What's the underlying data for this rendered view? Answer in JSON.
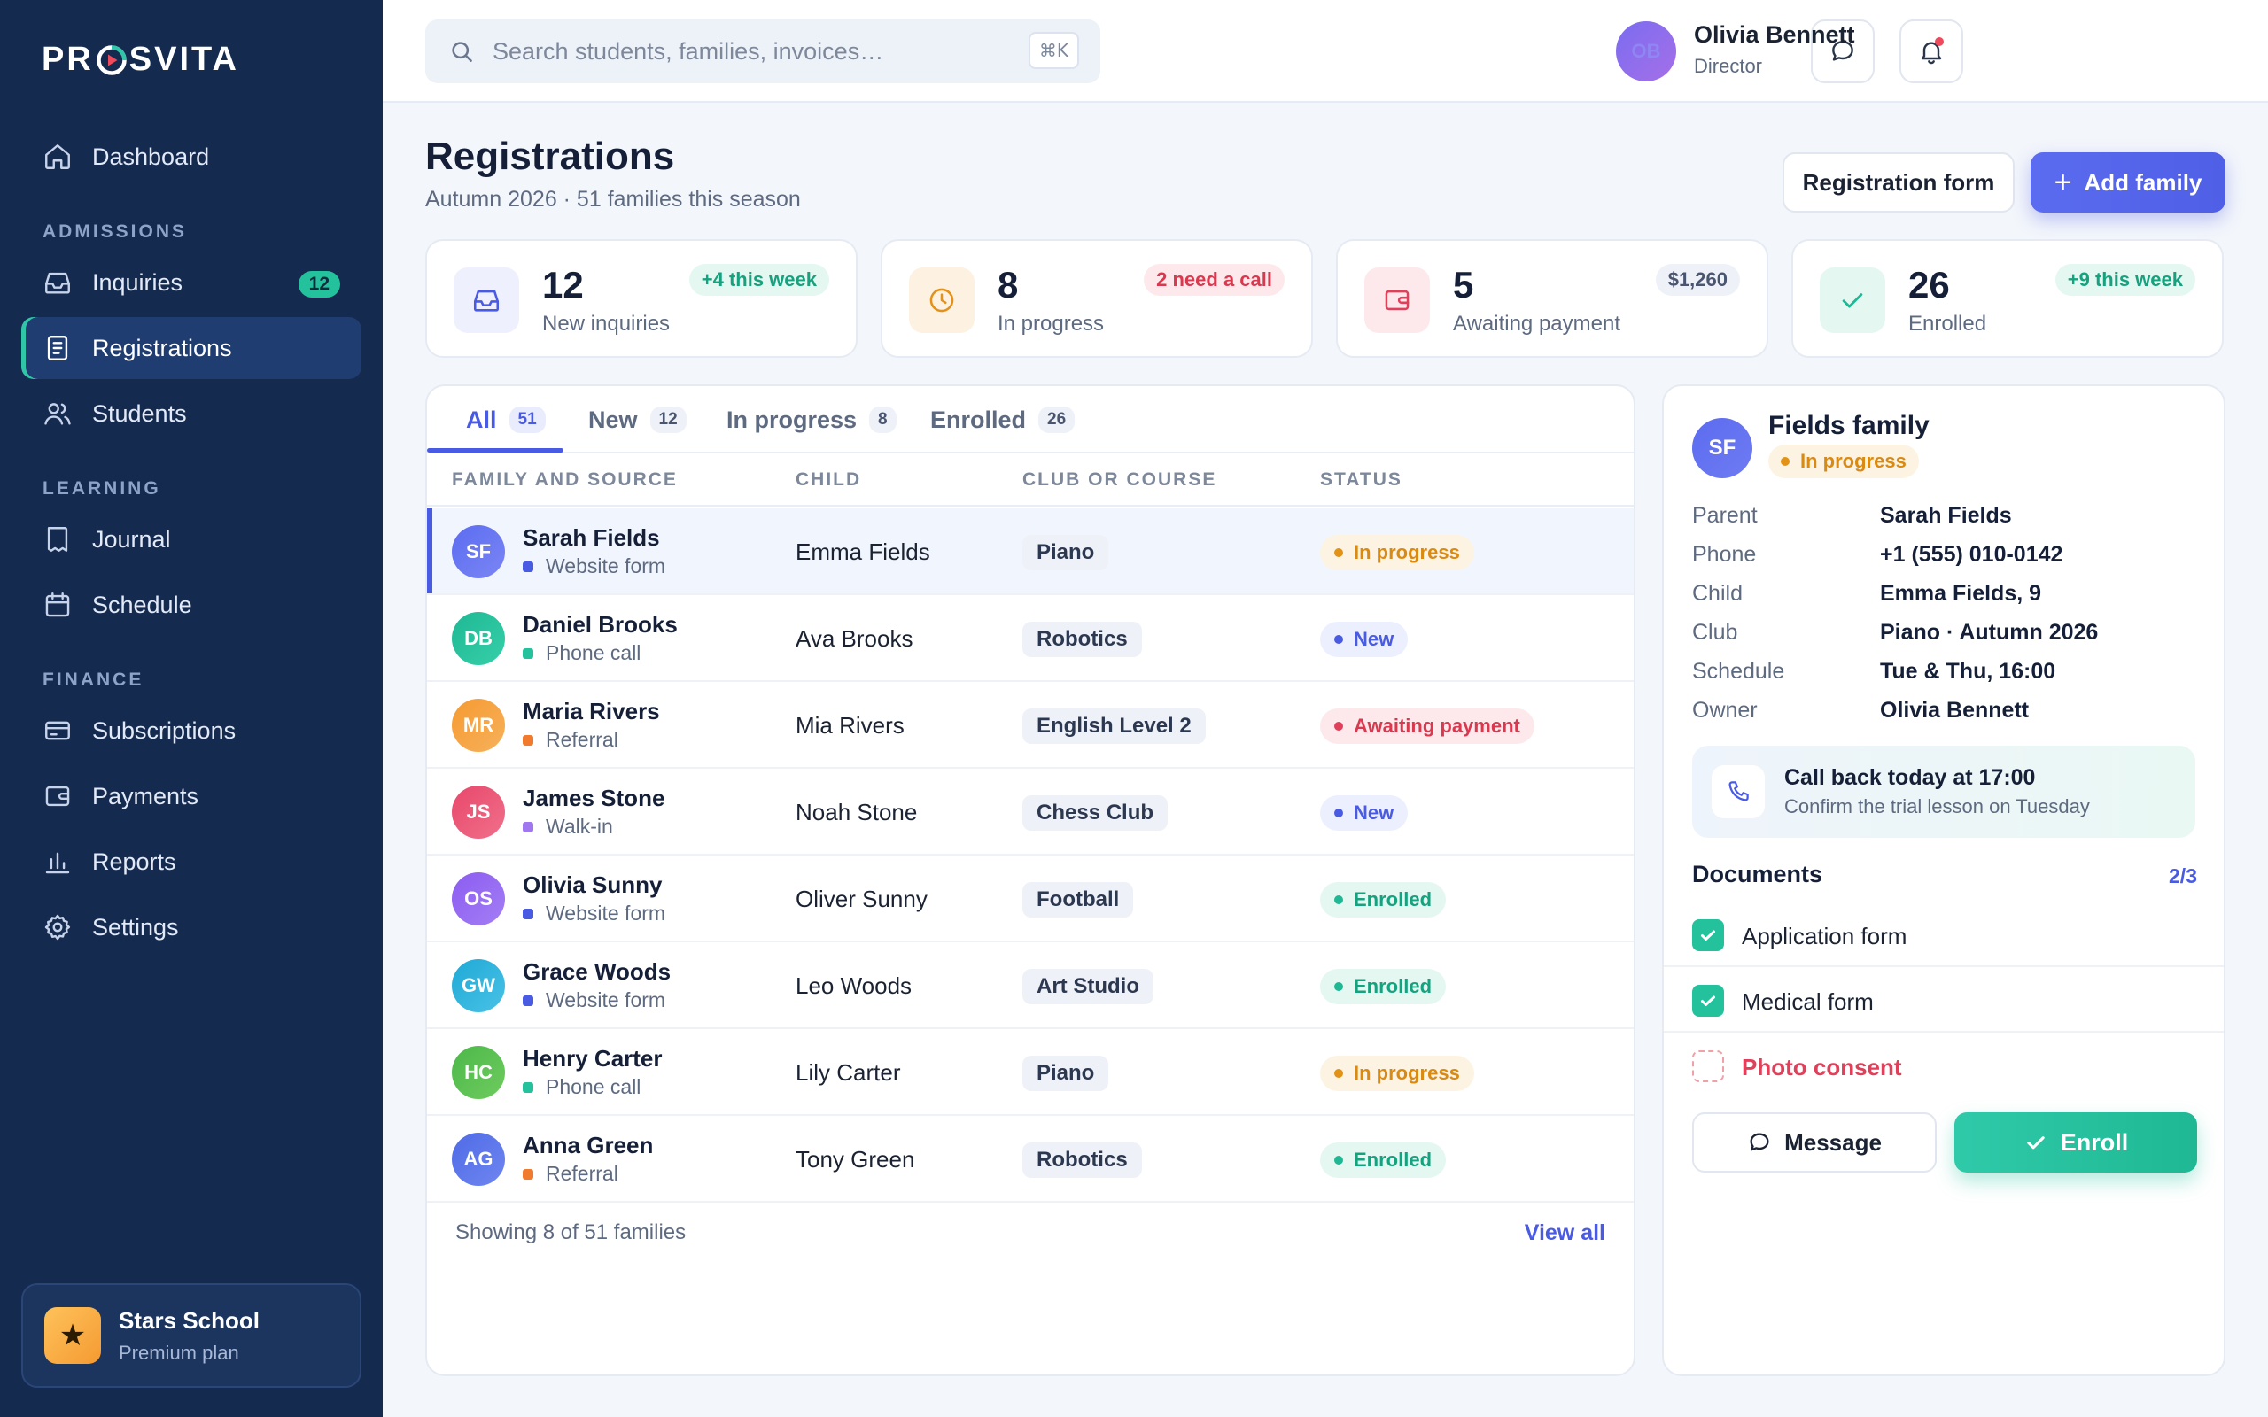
{
  "brand": {
    "logo_left": "PR",
    "logo_right": "SVITA"
  },
  "sidebar": {
    "items": [
      {
        "label": "Dashboard"
      },
      {
        "section": "ADMISSIONS"
      },
      {
        "label": "Inquiries",
        "badge": "12"
      },
      {
        "label": "Registrations"
      },
      {
        "label": "Students"
      },
      {
        "section": "LEARNING"
      },
      {
        "label": "Journal"
      },
      {
        "label": "Schedule"
      },
      {
        "section": "FINANCE"
      },
      {
        "label": "Subscriptions"
      },
      {
        "label": "Payments"
      },
      {
        "label": "Reports"
      },
      {
        "label": "Settings"
      }
    ],
    "active": "Registrations",
    "school": {
      "name": "Stars School",
      "plan": "Premium plan"
    }
  },
  "topbar": {
    "search_placeholder": "Search students, families, invoices…",
    "search_shortcut": "⌘K",
    "user": {
      "initials": "OB",
      "name": "Olivia Bennett",
      "role": "Director"
    }
  },
  "page": {
    "title": "Registrations",
    "subtitle": "Autumn 2026 · 51 families this season",
    "btn_registration_form": "Registration form",
    "btn_add_family": "Add family"
  },
  "stats": [
    {
      "value": "12",
      "label": "New inquiries",
      "pill": "+4 this week",
      "icon": "inbox-icon"
    },
    {
      "value": "8",
      "label": "In progress",
      "pill": "2 need a call",
      "icon": "clock-icon"
    },
    {
      "value": "5",
      "label": "Awaiting payment",
      "pill": "$1,260",
      "icon": "wallet-icon"
    },
    {
      "value": "26",
      "label": "Enrolled",
      "pill": "+9 this week",
      "icon": "check-icon"
    }
  ],
  "table": {
    "tabs": [
      {
        "label": "All",
        "count": "51"
      },
      {
        "label": "New",
        "count": "12"
      },
      {
        "label": "In progress",
        "count": "8"
      },
      {
        "label": "Enrolled",
        "count": "26"
      }
    ],
    "columns": [
      "FAMILY AND SOURCE",
      "CHILD",
      "CLUB OR COURSE",
      "STATUS"
    ],
    "rows": [
      {
        "initials": "SF",
        "name": "Sarah Fields",
        "source": "Website form",
        "child": "Emma Fields",
        "course": "Piano",
        "status": "In progress"
      },
      {
        "initials": "DB",
        "name": "Daniel Brooks",
        "source": "Phone call",
        "child": "Ava Brooks",
        "course": "Robotics",
        "status": "New"
      },
      {
        "initials": "MR",
        "name": "Maria Rivers",
        "source": "Referral",
        "child": "Mia Rivers",
        "course": "English Level 2",
        "status": "Awaiting payment"
      },
      {
        "initials": "JS",
        "name": "James Stone",
        "source": "Walk-in",
        "child": "Noah Stone",
        "course": "Chess Club",
        "status": "New"
      },
      {
        "initials": "OS",
        "name": "Olivia Sunny",
        "source": "Website form",
        "child": "Oliver Sunny",
        "course": "Football",
        "status": "Enrolled"
      },
      {
        "initials": "GW",
        "name": "Grace Woods",
        "source": "Website form",
        "child": "Leo Woods",
        "course": "Art Studio",
        "status": "Enrolled"
      },
      {
        "initials": "HC",
        "name": "Henry Carter",
        "source": "Phone call",
        "child": "Lily Carter",
        "course": "Piano",
        "status": "In progress"
      },
      {
        "initials": "AG",
        "name": "Anna Green",
        "source": "Referral",
        "child": "Tony Green",
        "course": "Robotics",
        "status": "Enrolled"
      }
    ],
    "footer_text": "Showing 8 of 51 families",
    "view_all": "View all"
  },
  "detail": {
    "initials": "SF",
    "title": "Fields family",
    "status": "In progress",
    "fields": [
      {
        "k": "Parent",
        "v": "Sarah Fields"
      },
      {
        "k": "Phone",
        "v": "+1 (555) 010-0142"
      },
      {
        "k": "Child",
        "v": "Emma Fields, 9"
      },
      {
        "k": "Club",
        "v": "Piano · Autumn 2026"
      },
      {
        "k": "Schedule",
        "v": "Tue & Thu, 16:00"
      },
      {
        "k": "Owner",
        "v": "Olivia Bennett"
      }
    ],
    "callback_title": "Call back today at 17:00",
    "callback_sub": "Confirm the trial lesson on Tuesday",
    "documents_title": "Documents",
    "documents_count": "2/3",
    "documents": [
      {
        "label": "Application form",
        "done": true
      },
      {
        "label": "Medical form",
        "done": true
      },
      {
        "label": "Photo consent",
        "done": false
      }
    ],
    "btn_message": "Message",
    "btn_enroll": "Enroll"
  },
  "colors": {
    "sidebar_bg": "#152a4f",
    "accent": "#4a5be3",
    "success": "#23c29d",
    "warning": "#e29316",
    "danger": "#e0405a"
  }
}
